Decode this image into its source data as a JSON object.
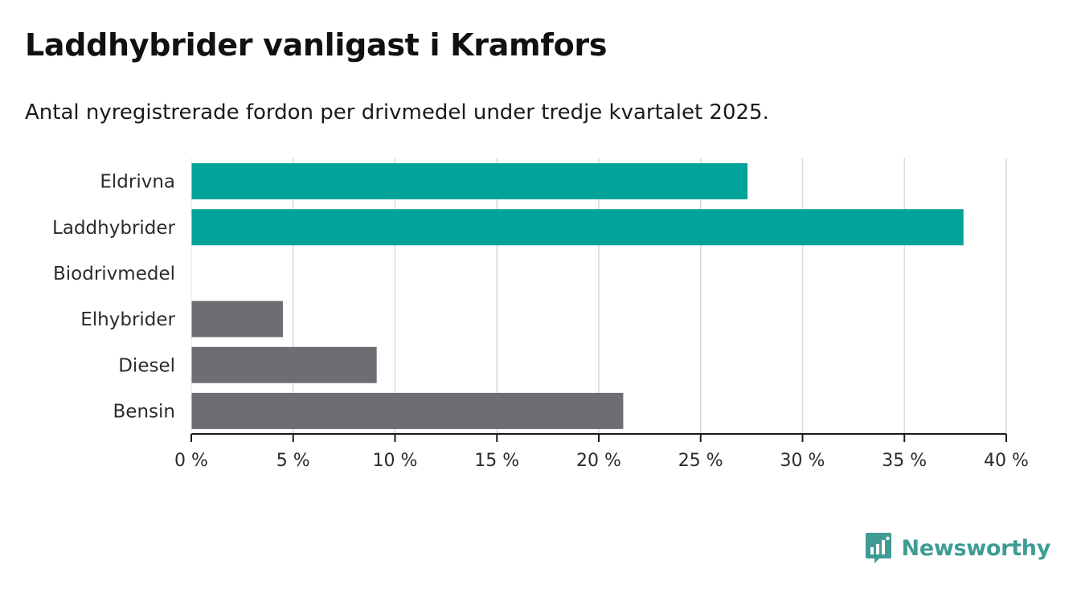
{
  "title": "Laddhybrider vanligast i Kramfors",
  "subtitle": "Antal nyregistrerade fordon per drivmedel under tredje kvartalet 2025.",
  "brand": {
    "name": "Newsworthy",
    "icon": "newsworthy-logo-icon",
    "color": "#3f9c95"
  },
  "chart_data": {
    "type": "bar",
    "orientation": "horizontal",
    "title": "Laddhybrider vanligast i Kramfors",
    "subtitle": "Antal nyregistrerade fordon per drivmedel under tredje kvartalet 2025.",
    "categories": [
      "Eldrivna",
      "Laddhybrider",
      "Biodrivmedel",
      "Elhybrider",
      "Diesel",
      "Bensin"
    ],
    "values": [
      27.3,
      37.9,
      0,
      4.5,
      9.1,
      21.2
    ],
    "colors": [
      "#00a398",
      "#00a398",
      "#00a398",
      "#6e6d73",
      "#6e6d73",
      "#6e6d73"
    ],
    "unit": "%",
    "xlim": [
      0,
      40
    ],
    "xticks": [
      0,
      5,
      10,
      15,
      20,
      25,
      30,
      35,
      40
    ],
    "xtick_labels": [
      "0 %",
      "5 %",
      "10 %",
      "15 %",
      "20 %",
      "25 %",
      "30 %",
      "35 %",
      "40 %"
    ],
    "grid": true,
    "xlabel": "",
    "ylabel": ""
  }
}
